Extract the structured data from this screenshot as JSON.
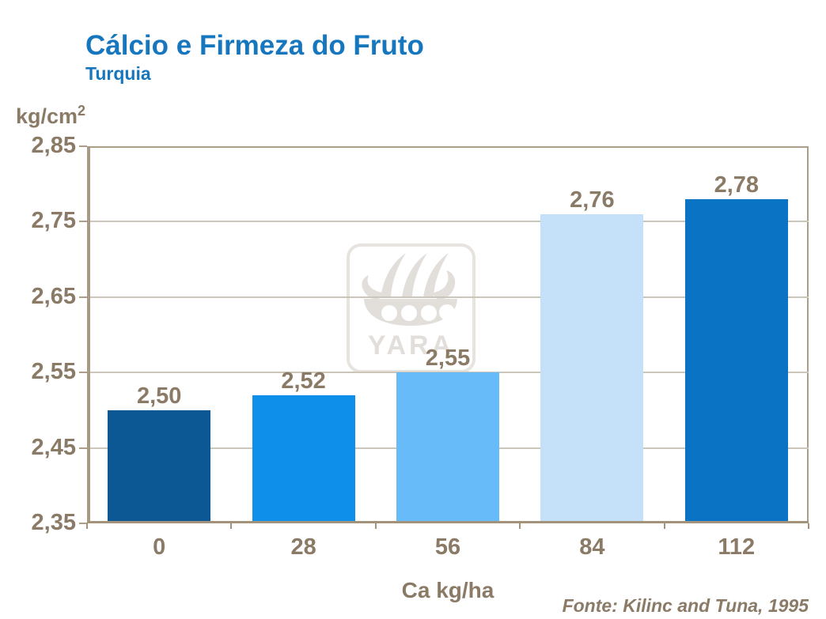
{
  "title": "Cálcio e Firmeza do Fruto",
  "subtitle": "Turquia",
  "y_axis_unit": "kg/cm",
  "y_axis_unit_exponent": "2",
  "x_axis_title": "Ca kg/ha",
  "source_note": "Fonte: Kilinc and Tuna, 1995",
  "watermark_text": "YARA",
  "colors": {
    "title_blue": "#1777BE",
    "label_brown": "#8A7A66",
    "axis_tan": "#AC9E89",
    "gridline": "#CCC5B9",
    "watermark_gray": "#E2DFDB"
  },
  "chart_data": {
    "type": "bar",
    "categories": [
      "0",
      "28",
      "56",
      "84",
      "112"
    ],
    "values": [
      2.5,
      2.52,
      2.55,
      2.76,
      2.78
    ],
    "value_labels": [
      "2,50",
      "2,52",
      "2,55",
      "2,76",
      "2,78"
    ],
    "bar_colors": [
      "#0B5894",
      "#0E8FE9",
      "#66BBF8",
      "#C5E1F9",
      "#0B73C4"
    ],
    "title": "Cálcio e Firmeza do Fruto",
    "subtitle": "Turquia",
    "xlabel": "Ca kg/ha",
    "ylabel": "kg/cm2",
    "ylim": [
      2.35,
      2.85
    ],
    "yticks": [
      2.35,
      2.45,
      2.55,
      2.65,
      2.75,
      2.85
    ],
    "ytick_labels": [
      "2,35",
      "2,45",
      "2,55",
      "2,65",
      "2,75",
      "2,85"
    ],
    "grid": "horizontal",
    "legend": "none"
  }
}
